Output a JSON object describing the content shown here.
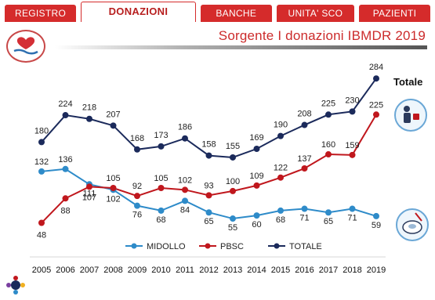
{
  "tabs": [
    "REGISTRO",
    "DONAZIONI",
    "BANCHE",
    "UNITA' SCO",
    "PAZIENTI"
  ],
  "active_tab": "DONAZIONI",
  "header": {
    "title": "Sorgente I donazioni IBMDR 2019"
  },
  "chart_data": {
    "type": "line",
    "title": "Sorgente I donazioni IBMDR 2019",
    "x": [
      "2005",
      "2006",
      "2007",
      "2008",
      "2009",
      "2010",
      "2011",
      "2012",
      "2013",
      "2014",
      "2015",
      "2016",
      "2017",
      "2018",
      "2019"
    ],
    "ylim": [
      0,
      300
    ],
    "grid": false,
    "legend_position": "bottom-center",
    "series": [
      {
        "name": "MIDOLLO",
        "color": "#2e8bc9",
        "values": [
          132,
          136,
          111,
          102,
          76,
          68,
          84,
          65,
          55,
          60,
          68,
          71,
          65,
          71,
          59
        ]
      },
      {
        "name": "PBSC",
        "color": "#c0171d",
        "values": [
          48,
          88,
          107,
          105,
          92,
          105,
          102,
          93,
          100,
          109,
          122,
          137,
          160,
          159,
          225
        ]
      },
      {
        "name": "TOTALE",
        "color": "#1b2a5b",
        "values": [
          180,
          224,
          218,
          207,
          168,
          173,
          186,
          158,
          155,
          169,
          190,
          208,
          225,
          230,
          284
        ]
      }
    ],
    "annotations": [
      "Totale"
    ]
  }
}
